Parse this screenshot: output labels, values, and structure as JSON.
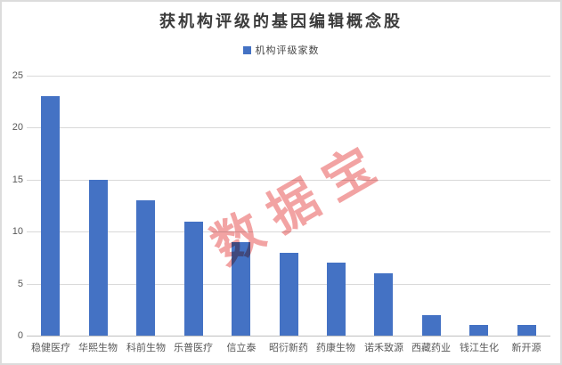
{
  "window": {
    "background": "#FFFFFF",
    "border_color": "#DCDCDC"
  },
  "chart_data": {
    "type": "bar",
    "title": "获机构评级的基因编辑概念股",
    "xlabel": "",
    "ylabel": "",
    "categories": [
      "稳健医疗",
      "华熙生物",
      "科前生物",
      "乐普医疗",
      "信立泰",
      "昭衍新药",
      "药康生物",
      "诺禾致源",
      "西藏药业",
      "钱江生化",
      "新开源"
    ],
    "series": [
      {
        "name": "机构评级家数",
        "values": [
          23,
          15,
          13,
          11,
          9,
          8,
          7,
          6,
          2,
          1,
          1
        ]
      }
    ],
    "legend_position": "top",
    "grid": true,
    "ylim": [
      0,
      25
    ],
    "yticks": [
      0,
      5,
      10,
      15,
      20,
      25
    ],
    "colors": {
      "bar": "#4472C4",
      "gridline": "#D9D9D9",
      "axis_line": "#BFBFBF",
      "tick_label": "#595959",
      "title": "#3B3B3B",
      "legend_label": "#474747"
    },
    "watermark": {
      "text": "数据宝",
      "color": "#EE8484"
    }
  }
}
